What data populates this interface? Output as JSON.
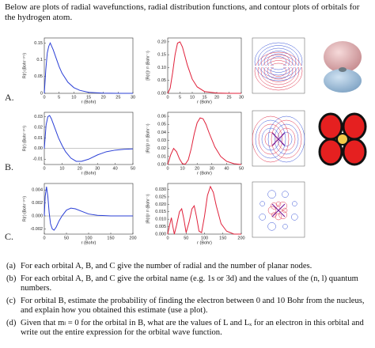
{
  "intro": "Below are plots of radial wavefunctions, radial distribution functions, and contour plots of orbitals for the hydrogen atom.",
  "row_labels": [
    "A.",
    "B.",
    "C."
  ],
  "chart_data": [
    {
      "type": "line",
      "xlabel": "r (Bohr)",
      "ylabel": "R(r) (Bohr⁻³ᐟ²)",
      "x": [
        0,
        0.5,
        1,
        1.5,
        2,
        3,
        4,
        5,
        6,
        8,
        10,
        12,
        15,
        20,
        25,
        30
      ],
      "series": [
        {
          "color": "#2a3fd6",
          "values": [
            0,
            0.07,
            0.12,
            0.14,
            0.15,
            0.13,
            0.105,
            0.08,
            0.06,
            0.033,
            0.017,
            0.009,
            0.003,
            0.0005,
            0,
            0
          ]
        }
      ],
      "xlim": [
        0,
        30
      ],
      "xticks": [
        0,
        5,
        10,
        15,
        20,
        25,
        30
      ],
      "ylim": [
        0,
        0.165
      ],
      "yticks": [
        0,
        {
          "value": 0.05,
          "label": "0.05"
        },
        {
          "value": 0.1,
          "label": "0.1"
        },
        0.15
      ]
    },
    {
      "type": "line",
      "xlabel": "r (Bohr)",
      "ylabel": "[R(r)]² r² (Bohr⁻¹)",
      "x": [
        0,
        1,
        2,
        3,
        4,
        5,
        6,
        7,
        8,
        10,
        12,
        15,
        20,
        25,
        30
      ],
      "series": [
        {
          "color": "#e0203a",
          "values": [
            0,
            0.02,
            0.08,
            0.15,
            0.195,
            0.2,
            0.18,
            0.145,
            0.11,
            0.055,
            0.025,
            0.007,
            0.001,
            0,
            0
          ]
        }
      ],
      "xlim": [
        0,
        30
      ],
      "xticks": [
        0,
        5,
        10,
        15,
        20,
        25,
        30
      ],
      "ylim": [
        0,
        0.215
      ],
      "yticks": [
        {
          "value": 0,
          "label": "0.00"
        },
        0.05,
        {
          "value": 0.1,
          "label": "0.10"
        },
        0.15,
        {
          "value": 0.2,
          "label": "0.20"
        }
      ]
    },
    {
      "type": "line",
      "xlabel": "r (Bohr)",
      "ylabel": "R(r) (Bohr⁻³ᐟ²)",
      "zero_line": true,
      "x": [
        0,
        1,
        2,
        3,
        4,
        6,
        8,
        10,
        12,
        15,
        18,
        21,
        25,
        30,
        35,
        40,
        45,
        50
      ],
      "series": [
        {
          "color": "#2a3fd6",
          "values": [
            0,
            0.022,
            0.03,
            0.031,
            0.028,
            0.019,
            0.01,
            0.003,
            -0.003,
            -0.009,
            -0.012,
            -0.012,
            -0.01,
            -0.006,
            -0.003,
            -0.0015,
            -0.0007,
            -0.0003
          ]
        }
      ],
      "xlim": [
        0,
        50
      ],
      "xticks": [
        0,
        10,
        20,
        30,
        40,
        50
      ],
      "ylim": [
        -0.015,
        0.034
      ],
      "yticks": [
        -0.01,
        {
          "value": 0,
          "label": "0.00"
        },
        0.01,
        0.02,
        0.03
      ]
    },
    {
      "type": "line",
      "xlabel": "r (Bohr)",
      "ylabel": "|R(r)|² r² (Bohr⁻¹)",
      "x": [
        0,
        2,
        4,
        6,
        8,
        10,
        12,
        14,
        16,
        18,
        20,
        22,
        24,
        26,
        28,
        32,
        36,
        40,
        45,
        50
      ],
      "series": [
        {
          "color": "#e0203a",
          "values": [
            0,
            0.012,
            0.02,
            0.016,
            0.007,
            0.001,
            0.0005,
            0.006,
            0.02,
            0.038,
            0.052,
            0.058,
            0.057,
            0.05,
            0.04,
            0.022,
            0.01,
            0.004,
            0.001,
            0
          ]
        }
      ],
      "xlim": [
        0,
        50
      ],
      "xticks": [
        0,
        10,
        20,
        30,
        40,
        50
      ],
      "ylim": [
        0,
        0.065
      ],
      "yticks": [
        {
          "value": 0,
          "label": "0.00"
        },
        0.01,
        0.02,
        0.03,
        0.04,
        0.05,
        0.06
      ]
    },
    {
      "type": "line",
      "xlabel": "r (Bohr)",
      "ylabel": "R(r) (Bohr⁻³ᐟ²)",
      "zero_line": true,
      "x": [
        0,
        2,
        5,
        8,
        11,
        14,
        18,
        22,
        27,
        33,
        40,
        50,
        60,
        70,
        85,
        100,
        120,
        150,
        200
      ],
      "series": [
        {
          "color": "#2a3fd6",
          "values": [
            0,
            0.003,
            0.0045,
            0.003,
            0.0005,
            -0.0012,
            -0.002,
            -0.0022,
            -0.0017,
            -0.0008,
            0,
            0.0009,
            0.0012,
            0.0011,
            0.0007,
            0.0003,
            0.0001,
            0,
            0
          ]
        }
      ],
      "xlim": [
        0,
        200
      ],
      "xticks": [
        0,
        50,
        100,
        150,
        200
      ],
      "ylim": [
        -0.0028,
        0.005
      ],
      "yticks": [
        -0.002,
        {
          "value": 0,
          "label": "0.000"
        },
        0.002,
        0.004
      ]
    },
    {
      "type": "line",
      "xlabel": "r (Bohr)",
      "ylabel": "|R(r)|² r² (Bohr⁻¹)",
      "x": [
        0,
        5,
        10,
        14,
        18,
        24,
        32,
        38,
        44,
        50,
        58,
        66,
        72,
        78,
        85,
        92,
        100,
        108,
        116,
        124,
        132,
        145,
        160,
        180,
        200
      ],
      "series": [
        {
          "color": "#e0203a",
          "values": [
            0,
            0.006,
            0.011,
            0.005,
            0,
            0.006,
            0.015,
            0.017,
            0.01,
            0.001,
            0.008,
            0.017,
            0.019,
            0.012,
            0.002,
            0.001,
            0.012,
            0.026,
            0.032,
            0.028,
            0.019,
            0.007,
            0.002,
            0,
            0
          ]
        }
      ],
      "xlim": [
        0,
        200
      ],
      "xticks": [
        0,
        50,
        100,
        150,
        200
      ],
      "ylim": [
        0,
        0.034
      ],
      "yticks": [
        {
          "value": 0,
          "label": "0.000"
        },
        0.005,
        {
          "value": 0.01,
          "label": "0.010"
        },
        0.015,
        {
          "value": 0.02,
          "label": "0.020"
        },
        0.025,
        {
          "value": 0.03,
          "label": "0.030"
        }
      ]
    }
  ],
  "questions": [
    {
      "label": "(a)",
      "text": "For each orbital A, B, and C give the number of radial and the number of planar nodes."
    },
    {
      "label": "(b)",
      "text": "For each orbital A, B, and C give the orbital name (e.g. 1s or 3d) and the values of the (n, l) quantum numbers."
    },
    {
      "label": "(c)",
      "text": "For orbital B, estimate the probability of finding the electron between 0 and 10 Bohr from the nucleus, and explain how you obtained this estimate (use a plot)."
    },
    {
      "label": "(d)",
      "text": "Given that mₗ = 0 for the orbital in B, what are the values of L and Lₓ for an electron in this orbital and write out the entire expression for the orbital wave function."
    }
  ]
}
